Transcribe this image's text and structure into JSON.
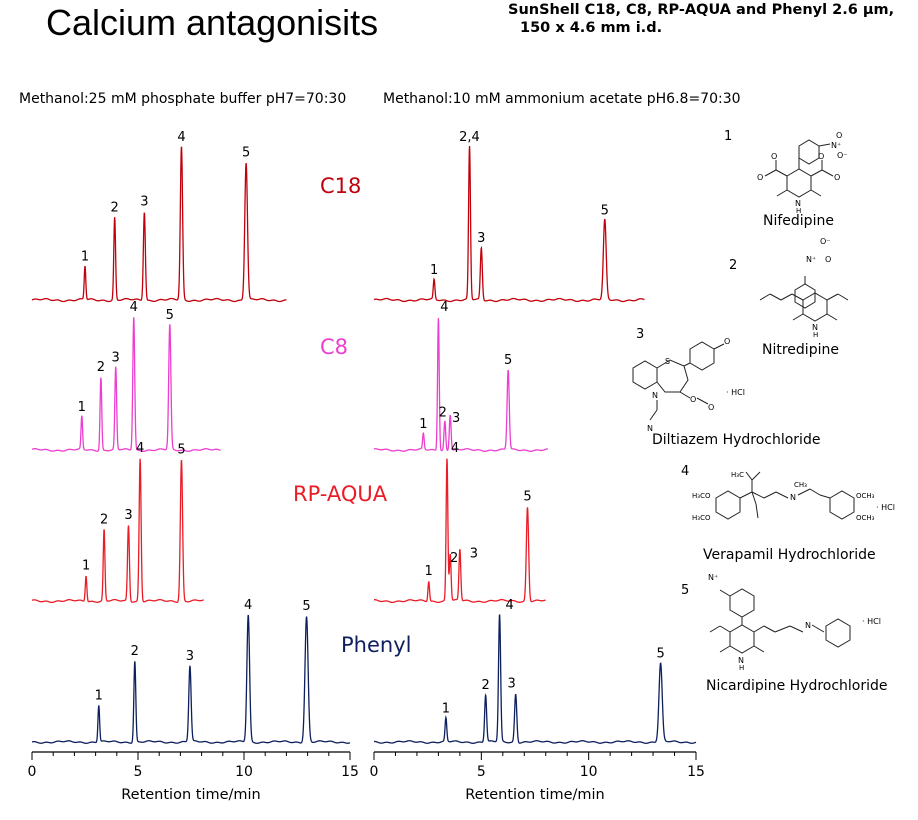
{
  "header": {
    "title": "Calcium antagonisits",
    "subtitle_line1": "SunShell C18, C8, RP-AQUA  and Phenyl 2.6 µm,",
    "subtitle_line2": "150 x 4.6 mm i.d."
  },
  "conditions": {
    "left": "Methanol:25 mM phosphate buffer pH7=70:30",
    "right": "Methanol:10 mM ammonium acetate pH6.8=70:30"
  },
  "colors": {
    "C18": "#c0000b",
    "C8": "#ec3ed0",
    "RP-AQUA": "#ea1c26",
    "Phenyl": "#0d1f5c"
  },
  "compounds": [
    {
      "number": "1",
      "name": "Nifedipine",
      "icon": "nifedipine-structure-icon"
    },
    {
      "number": "2",
      "name": "Nitredipine",
      "icon": "nitredipine-structure-icon"
    },
    {
      "number": "3",
      "name": "Diltiazem Hydrochloride",
      "icon": "diltiazem-structure-icon",
      "salt": "· HCl"
    },
    {
      "number": "4",
      "name": "Verapamil Hydrochloride",
      "icon": "verapamil-structure-icon",
      "salt": "· HCl"
    },
    {
      "number": "5",
      "name": "Nicardipine Hydrochloride",
      "icon": "nicardipine-structure-icon",
      "salt": "· HCl"
    }
  ],
  "chart_data": [
    {
      "type": "line",
      "xlabel": "Retention time/min",
      "xlim": [
        0,
        15
      ],
      "xticks": [
        0,
        5,
        10,
        15
      ],
      "column_label": "Methanol:25 mM phosphate buffer pH7=70:30",
      "series": [
        {
          "name": "C18",
          "peaks": [
            {
              "label": "1",
              "rt": 2.5,
              "height": 0.22
            },
            {
              "label": "2",
              "rt": 3.9,
              "height": 0.54
            },
            {
              "label": "3",
              "rt": 5.3,
              "height": 0.58
            },
            {
              "label": "4",
              "rt": 7.05,
              "height": 1.0
            },
            {
              "label": "5",
              "rt": 10.1,
              "height": 0.9
            }
          ]
        },
        {
          "name": "C8",
          "peaks": [
            {
              "label": "1",
              "rt": 2.35,
              "height": 0.25
            },
            {
              "label": "2",
              "rt": 3.25,
              "height": 0.55
            },
            {
              "label": "3",
              "rt": 3.95,
              "height": 0.62
            },
            {
              "label": "4",
              "rt": 4.8,
              "height": 1.0
            },
            {
              "label": "5",
              "rt": 6.5,
              "height": 0.94
            }
          ]
        },
        {
          "name": "RP-AQUA",
          "peaks": [
            {
              "label": "1",
              "rt": 2.55,
              "height": 0.18
            },
            {
              "label": "2",
              "rt": 3.4,
              "height": 0.5
            },
            {
              "label": "3",
              "rt": 4.55,
              "height": 0.53
            },
            {
              "label": "4",
              "rt": 5.1,
              "height": 1.0
            },
            {
              "label": "5",
              "rt": 7.05,
              "height": 0.99
            }
          ]
        },
        {
          "name": "Phenyl",
          "peaks": [
            {
              "label": "1",
              "rt": 3.15,
              "height": 0.28
            },
            {
              "label": "2",
              "rt": 4.85,
              "height": 0.62
            },
            {
              "label": "3",
              "rt": 7.45,
              "height": 0.58
            },
            {
              "label": "4",
              "rt": 10.2,
              "height": 0.97
            },
            {
              "label": "5",
              "rt": 12.95,
              "height": 0.96
            }
          ]
        }
      ]
    },
    {
      "type": "line",
      "xlabel": "Retention time/min",
      "xlim": [
        0,
        15
      ],
      "xticks": [
        0,
        5,
        10,
        15
      ],
      "column_label": "Methanol:10 mM ammonium acetate pH6.8=70:30",
      "series": [
        {
          "name": "C18",
          "peaks": [
            {
              "label": "1",
              "rt": 2.8,
              "height": 0.13
            },
            {
              "label": "2,4",
              "rt": 4.45,
              "height": 1.0
            },
            {
              "label": "3",
              "rt": 5.0,
              "height": 0.34
            },
            {
              "label": "5",
              "rt": 10.75,
              "height": 0.52
            }
          ]
        },
        {
          "name": "C8",
          "peaks": [
            {
              "label": "1",
              "rt": 2.3,
              "height": 0.12
            },
            {
              "label": "4",
              "rt": 3.0,
              "height": 1.0
            },
            {
              "label": "2",
              "rt": 3.3,
              "height": 0.22
            },
            {
              "label": "3",
              "rt": 3.55,
              "height": 0.27
            },
            {
              "label": "5",
              "rt": 6.25,
              "height": 0.6
            }
          ]
        },
        {
          "name": "RP-AQUA",
          "peaks": [
            {
              "label": "1",
              "rt": 2.55,
              "height": 0.14
            },
            {
              "label": "4",
              "rt": 3.4,
              "height": 1.0
            },
            {
              "label": "2",
              "rt": 3.55,
              "height": 0.33
            },
            {
              "label": "3",
              "rt": 4.0,
              "height": 0.36
            },
            {
              "label": "5",
              "rt": 7.15,
              "height": 0.66
            }
          ]
        },
        {
          "name": "Phenyl",
          "peaks": [
            {
              "label": "1",
              "rt": 3.35,
              "height": 0.18
            },
            {
              "label": "2",
              "rt": 5.2,
              "height": 0.36
            },
            {
              "label": "4",
              "rt": 5.85,
              "height": 0.97
            },
            {
              "label": "3",
              "rt": 6.6,
              "height": 0.37
            },
            {
              "label": "5",
              "rt": 13.35,
              "height": 0.6
            }
          ]
        }
      ]
    }
  ]
}
